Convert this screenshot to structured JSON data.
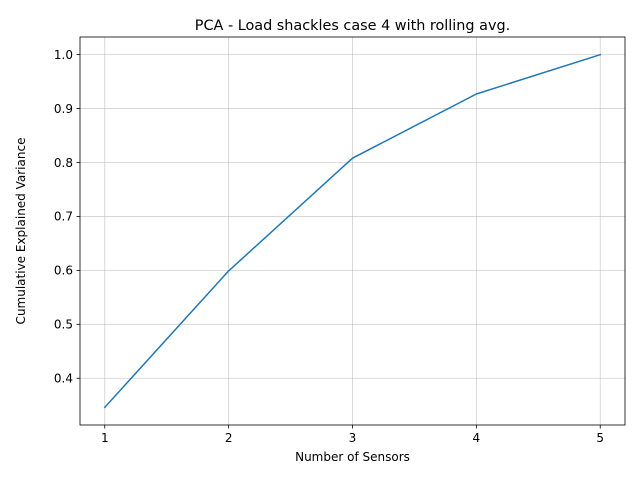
{
  "chart_data": {
    "type": "line",
    "title": "PCA - Load shackles case 4 with rolling avg.",
    "xlabel": "Number of Sensors",
    "ylabel": "Cumulative Explained Variance",
    "x": [
      1,
      2,
      3,
      4,
      5
    ],
    "series": [
      {
        "values": [
          0.346,
          0.599,
          0.808,
          0.927,
          1.0
        ],
        "color": "#1f77b4"
      }
    ],
    "xlim": [
      0.8,
      5.2
    ],
    "ylim": [
      0.3133,
      1.0327
    ],
    "xticks": [
      "1",
      "2",
      "3",
      "4",
      "5"
    ],
    "yticks": [
      "0.4",
      "0.5",
      "0.6",
      "0.7",
      "0.8",
      "0.9",
      "1.0"
    ],
    "grid": true
  }
}
